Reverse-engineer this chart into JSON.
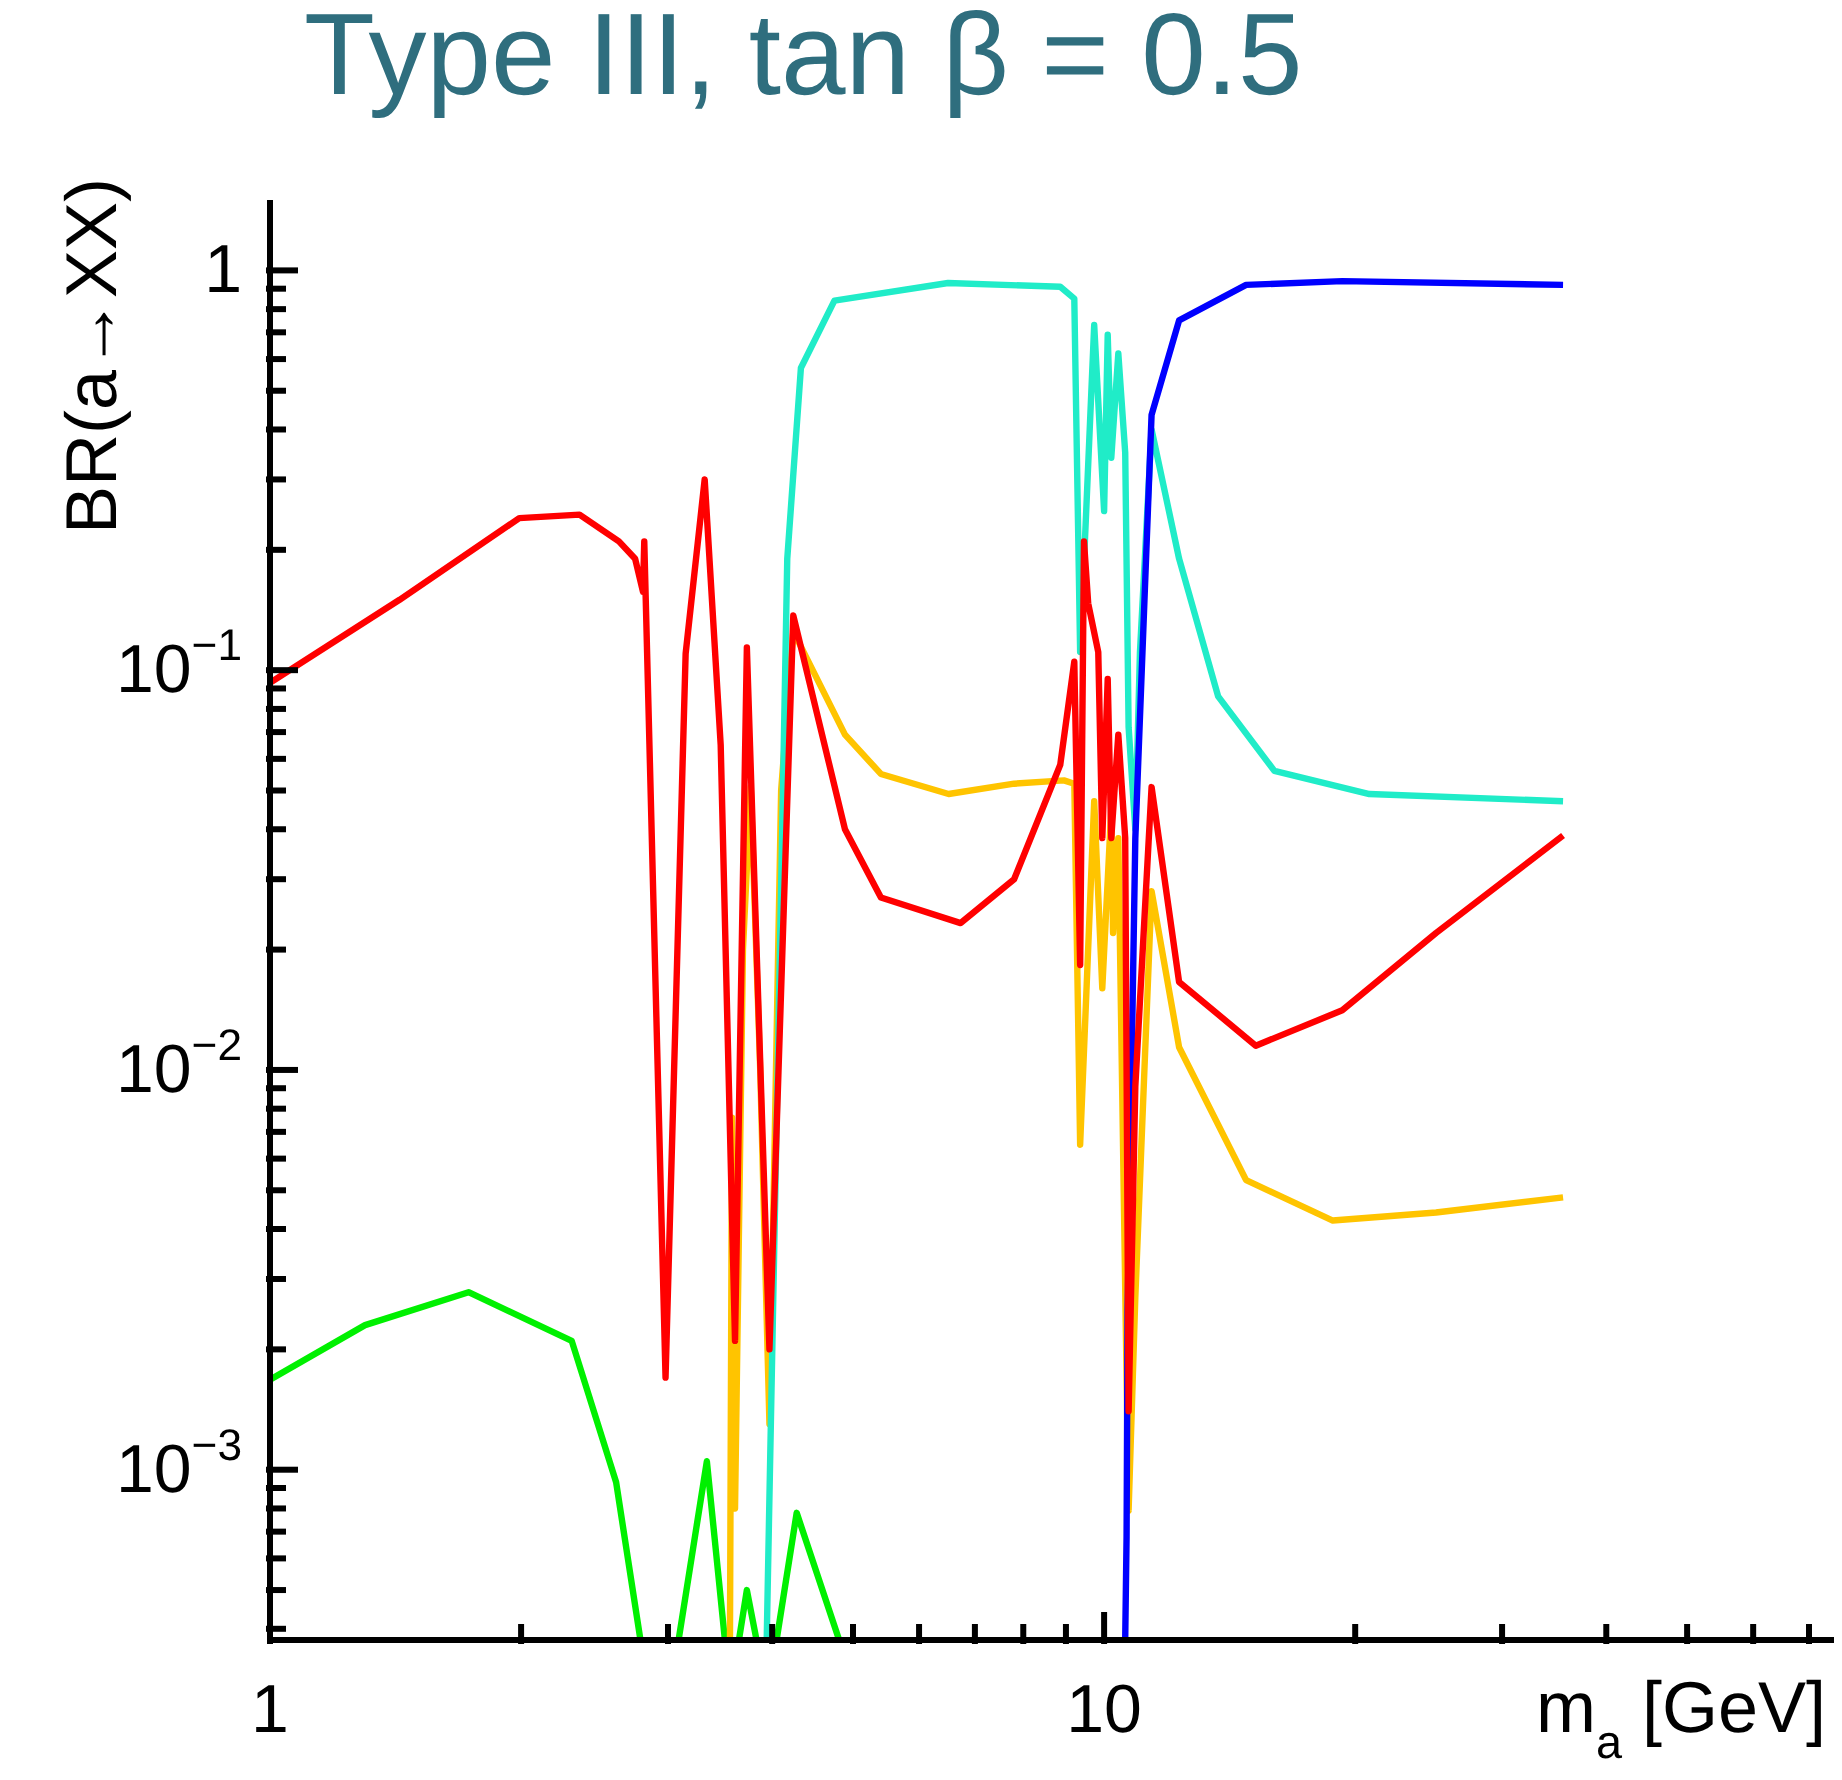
{
  "chart_data": {
    "type": "line",
    "title": "Type III, tan β = 0.5",
    "xlabel": "m$_{a}$ [GeV]",
    "ylabel": "BR(a→XX)",
    "log": "xy",
    "marker": "none",
    "line_style": "solid",
    "xlim": [
      1,
      75
    ],
    "ylim": [
      0.000375,
      1.5
    ],
    "xticks": [
      1,
      {
        "value": 2,
        "label": null
      },
      {
        "value": 3,
        "label": null
      },
      {
        "value": 4,
        "label": null
      },
      {
        "value": 5,
        "label": null
      },
      {
        "value": 6,
        "label": null
      },
      {
        "value": 7,
        "label": null
      },
      {
        "value": 8,
        "label": null
      },
      {
        "value": 9,
        "label": null
      },
      10,
      {
        "value": 20,
        "label": null
      },
      {
        "value": 30,
        "label": null
      },
      {
        "value": 40,
        "label": null
      },
      {
        "value": 50,
        "label": null
      },
      {
        "value": 60,
        "label": null
      },
      {
        "value": 70,
        "label": null
      }
    ],
    "yticks": [
      {
        "value": 0.0004,
        "label": null
      },
      {
        "value": 0.0005,
        "label": null
      },
      {
        "value": 0.0006,
        "label": null
      },
      {
        "value": 0.0007,
        "label": null
      },
      {
        "value": 0.0008,
        "label": null
      },
      {
        "value": 0.0009,
        "label": null
      },
      {
        "value": 0.001,
        "label": "10$^{−3}$"
      },
      {
        "value": 0.002,
        "label": null
      },
      {
        "value": 0.003,
        "label": null
      },
      {
        "value": 0.004,
        "label": null
      },
      {
        "value": 0.005,
        "label": null
      },
      {
        "value": 0.006,
        "label": null
      },
      {
        "value": 0.007,
        "label": null
      },
      {
        "value": 0.008,
        "label": null
      },
      {
        "value": 0.009,
        "label": null
      },
      {
        "value": 0.01,
        "label": "10$^{−2}$"
      },
      {
        "value": 0.02,
        "label": null
      },
      {
        "value": 0.03,
        "label": null
      },
      {
        "value": 0.04,
        "label": null
      },
      {
        "value": 0.05,
        "label": null
      },
      {
        "value": 0.06,
        "label": null
      },
      {
        "value": 0.07,
        "label": null
      },
      {
        "value": 0.08,
        "label": null
      },
      {
        "value": 0.09,
        "label": null
      },
      {
        "value": 0.1,
        "label": "10$^{−1}$"
      },
      {
        "value": 0.2,
        "label": null
      },
      {
        "value": 0.3,
        "label": null
      },
      {
        "value": 0.4,
        "label": null
      },
      {
        "value": 0.5,
        "label": null
      },
      {
        "value": 0.6,
        "label": null
      },
      {
        "value": 0.7,
        "label": null
      },
      {
        "value": 0.8,
        "label": null
      },
      {
        "value": 0.9,
        "label": null
      },
      1
    ],
    "series": [
      {
        "color": "#00f000",
        "x": [
          1,
          1.3,
          1.73,
          2.3,
          2.6,
          2.78,
          2.9,
          3.09,
          3.34,
          3.51,
          3.58,
          3.65,
          3.73,
          3.83,
          3.95,
          4.05,
          4.28,
          4.81
        ],
        "values": [
          0.00168,
          0.0023,
          0.00278,
          0.0021,
          0.00093,
          0.000376,
          null,
          0.000376,
          0.00105,
          0.000376,
          null,
          0.000376,
          0.0005,
          0.000376,
          null,
          0.000376,
          0.00078,
          0.000376
        ]
      },
      {
        "color": "#ffc400",
        "x": [
          3.56,
          3.58,
          3.61,
          3.69,
          3.77,
          3.87,
          3.97,
          4.1,
          4.24,
          4.89,
          5.4,
          6.51,
          7.8,
          8.95,
          9.21,
          9.36,
          9.73,
          9.95,
          10.2,
          10.25,
          10.4,
          10.7,
          10.9,
          11.4,
          12.3,
          14.8,
          18.8,
          25,
          35.5
        ],
        "values": [
          0.000376,
          0.0076,
          0.0008,
          0.02,
          0.051,
          0.01,
          0.0013,
          0.05,
          0.125,
          0.069,
          0.055,
          0.049,
          0.052,
          0.053,
          0.052,
          0.0065,
          0.047,
          0.016,
          0.045,
          0.022,
          0.038,
          0.00079,
          0.0027,
          0.028,
          0.0114,
          0.0053,
          0.0042,
          0.0044,
          0.0048
        ]
      },
      {
        "color": "#20ecc8",
        "x": [
          3.94,
          4.07,
          4.17,
          4.33,
          4.75,
          6.5,
          8.86,
          9.21,
          9.36,
          9.73,
          10,
          10.1,
          10.2,
          10.4,
          10.6,
          10.7,
          10.9,
          11.04,
          11.4,
          12.3,
          13.7,
          16,
          20.8,
          35.5
        ],
        "values": [
          0.000376,
          0.0127,
          0.19,
          0.57,
          0.84,
          0.93,
          0.91,
          0.85,
          0.111,
          0.73,
          0.25,
          0.69,
          0.34,
          0.62,
          0.35,
          0.072,
          0.04,
          0.111,
          0.4,
          0.19,
          0.086,
          0.056,
          0.049,
          0.047
        ]
      },
      {
        "color": "#0000ff",
        "x": [
          10.6,
          10.64,
          10.67,
          10.9,
          11.4,
          12.3,
          14.8,
          19.3,
          35.5
        ],
        "values": [
          0.000376,
          0.00068,
          0.0025,
          0.038,
          0.435,
          0.75,
          0.92,
          0.94,
          0.92
        ]
      },
      {
        "color": "#ff0000",
        "x": [
          1,
          1.43,
          1.99,
          2.35,
          2.62,
          2.74,
          2.8,
          2.81,
          2.98,
          3.15,
          3.32,
          3.47,
          3.61,
          3.73,
          3.97,
          4.24,
          4.89,
          5.4,
          6.73,
          7.8,
          8.86,
          9.21,
          9.36,
          9.46,
          9.57,
          9.84,
          9.95,
          10.1,
          10.2,
          10.4,
          10.6,
          10.7,
          10.9,
          11.4,
          12.3,
          15.2,
          19.3,
          25,
          35.5
        ],
        "values": [
          0.093,
          0.15,
          0.24,
          0.245,
          0.21,
          0.19,
          0.157,
          0.21,
          0.0017,
          0.11,
          0.3,
          0.065,
          0.0021,
          0.114,
          0.002,
          0.137,
          0.04,
          0.027,
          0.0233,
          0.03,
          0.058,
          0.105,
          0.0183,
          0.21,
          0.147,
          0.111,
          0.038,
          0.095,
          0.038,
          0.069,
          0.038,
          0.0014,
          0.0091,
          0.051,
          0.0166,
          0.0115,
          0.0141,
          0.022,
          0.0386
        ]
      }
    ]
  }
}
